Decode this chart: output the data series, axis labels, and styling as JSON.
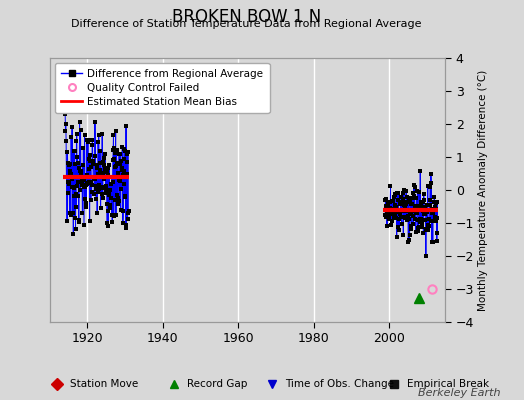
{
  "title": "BROKEN BOW 1 N",
  "subtitle": "Difference of Station Temperature Data from Regional Average",
  "ylabel_right": "Monthly Temperature Anomaly Difference (°C)",
  "background_color": "#d8d8d8",
  "plot_bg_color": "#d8d8d8",
  "ylim": [
    -4,
    4
  ],
  "xlim": [
    1910,
    2015
  ],
  "xticks": [
    1920,
    1940,
    1960,
    1980,
    2000
  ],
  "yticks_right": [
    -4,
    -3,
    -2,
    -1,
    0,
    1,
    2,
    3,
    4
  ],
  "grid_color": "#ffffff",
  "line_color": "#0000ff",
  "marker_color": "#000000",
  "bias_color": "#ff0000",
  "qc_fail_color": "#ff80c0",
  "record_gap_color": "#008000",
  "berkeley_earth_text": "Berkeley Earth",
  "early_bias": 0.38,
  "late_bias": -0.62,
  "early_x_start": 1913.5,
  "early_x_end": 1931.0,
  "late_x_start": 1998.5,
  "late_x_end": 2013.0,
  "record_gap_x": 2008.0,
  "record_gap_y": -3.28,
  "qc_fail_x": 2011.5,
  "qc_fail_y": -3.0
}
